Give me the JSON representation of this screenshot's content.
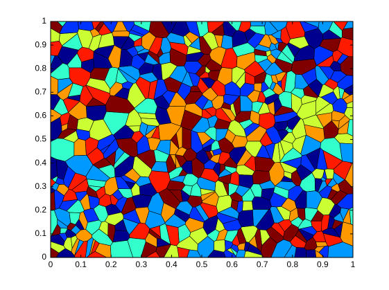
{
  "chart_data": {
    "type": "voronoi",
    "xlim": [
      0,
      1
    ],
    "ylim": [
      0,
      1
    ],
    "xticks": [
      0,
      0.1,
      0.2,
      0.3,
      0.4,
      0.5,
      0.6,
      0.7,
      0.8,
      0.9,
      1
    ],
    "yticks": [
      0,
      0.1,
      0.2,
      0.3,
      0.4,
      0.5,
      0.6,
      0.7,
      0.8,
      0.9,
      1
    ],
    "colors": [
      "#800000",
      "#ff1a00",
      "#ff9900",
      "#ccff33",
      "#33ffcc",
      "#0099ff",
      "#0033ff",
      "#00008f"
    ]
  }
}
